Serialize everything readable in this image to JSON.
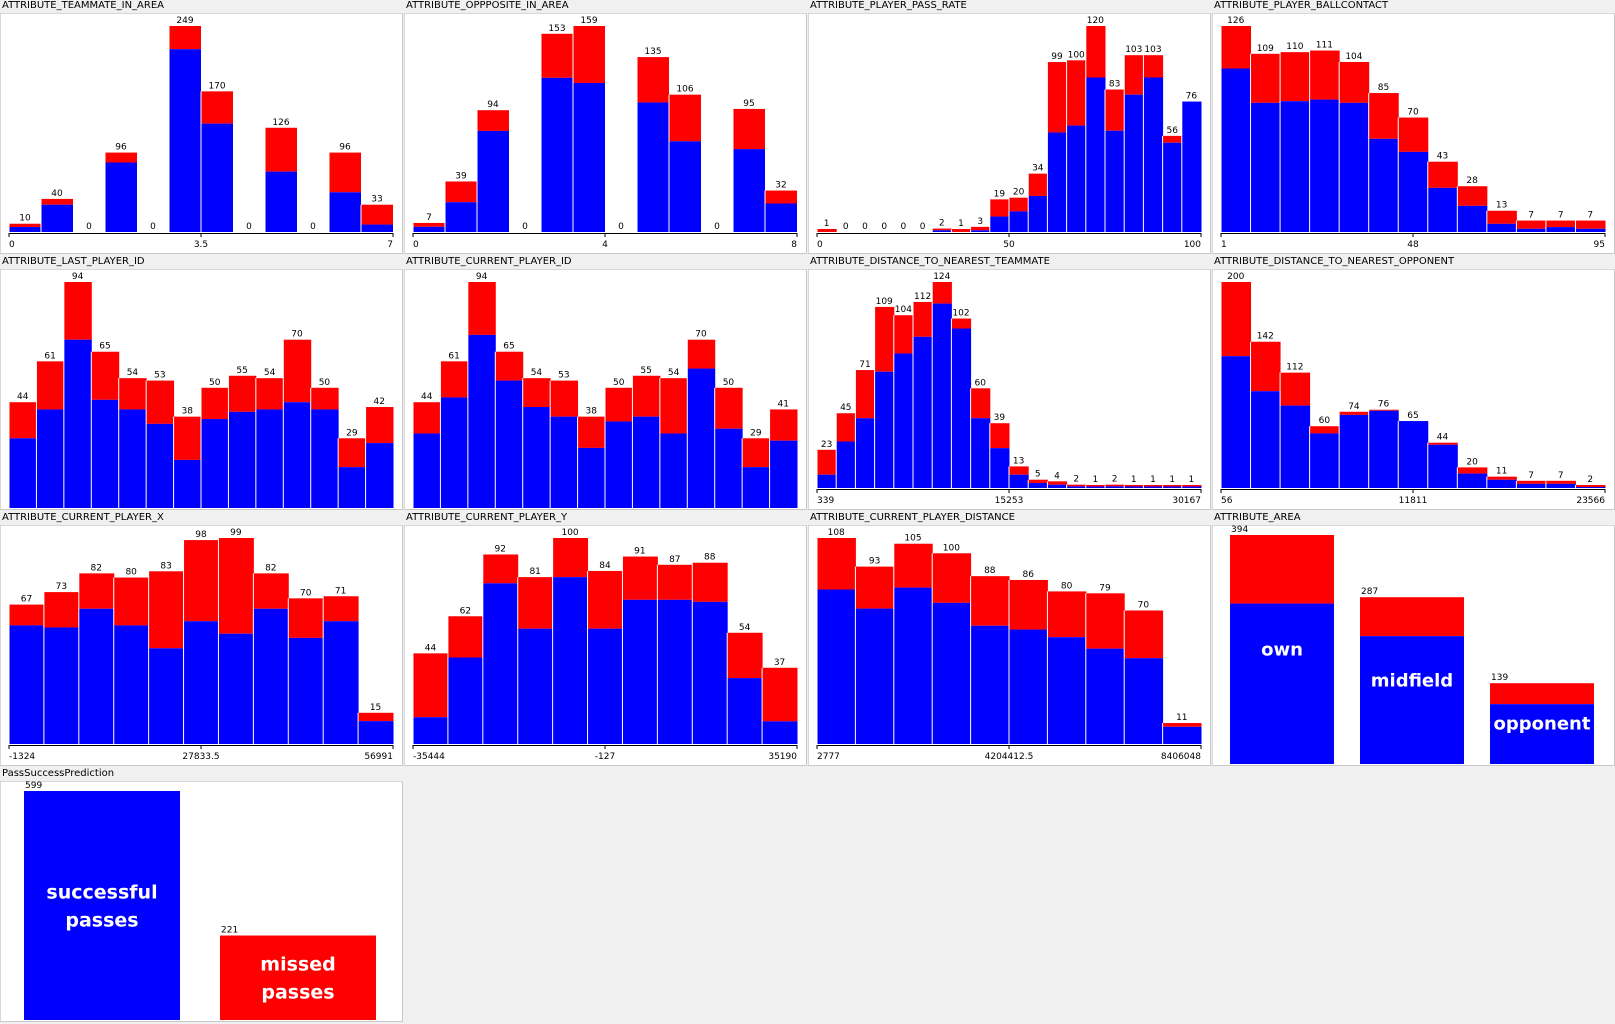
{
  "colors": {
    "success": "#0000ff",
    "missed": "#ff0000",
    "axis": "#000000",
    "panel": "#ffffff",
    "window": "#f0f0f0"
  },
  "chart_data": [
    {
      "type": "bar",
      "title": "ATTRIBUTE_TEAMMATE_IN_AREA",
      "bin_gaps": true,
      "totals": [
        10,
        40,
        0,
        96,
        0,
        249,
        170,
        0,
        126,
        0,
        96,
        33
      ],
      "success": [
        6,
        33,
        0,
        84,
        0,
        221,
        131,
        0,
        73,
        0,
        48,
        9
      ],
      "ticks": [
        "0",
        "3.5",
        "7"
      ]
    },
    {
      "type": "bar",
      "title": "ATTRIBUTE_OPPPOSITE_IN_AREA",
      "bin_gaps": true,
      "totals": [
        7,
        39,
        94,
        0,
        153,
        159,
        0,
        135,
        106,
        0,
        95,
        32
      ],
      "success": [
        4,
        23,
        78,
        0,
        119,
        115,
        0,
        100,
        70,
        0,
        64,
        22
      ],
      "ticks": [
        "0",
        "4",
        "8"
      ]
    },
    {
      "type": "bar",
      "title": "ATTRIBUTE_PLAYER_PASS_RATE",
      "totals": [
        1,
        0,
        0,
        0,
        0,
        0,
        2,
        1,
        3,
        19,
        20,
        34,
        99,
        100,
        120,
        83,
        103,
        103,
        56,
        76
      ],
      "success": [
        0,
        0,
        0,
        0,
        0,
        0,
        1,
        0,
        1,
        9,
        12,
        21,
        58,
        62,
        90,
        59,
        80,
        90,
        52,
        76
      ],
      "ticks": [
        "0",
        "50",
        "100"
      ]
    },
    {
      "type": "bar",
      "title": "ATTRIBUTE_PLAYER_BALLCONTACT",
      "totals": [
        126,
        109,
        110,
        111,
        104,
        85,
        70,
        43,
        28,
        13,
        7,
        7,
        7
      ],
      "success": [
        100,
        79,
        80,
        81,
        79,
        57,
        49,
        27,
        16,
        5,
        2,
        3,
        2
      ],
      "ticks": [
        "1",
        "48",
        "95"
      ]
    },
    {
      "type": "bar",
      "title": "ATTRIBUTE_LAST_PLAYER_ID",
      "totals": [
        44,
        61,
        94,
        65,
        54,
        53,
        38,
        50,
        55,
        54,
        70,
        50,
        29,
        42
      ],
      "success": [
        29,
        41,
        70,
        45,
        41,
        35,
        20,
        37,
        40,
        41,
        44,
        41,
        17,
        27
      ],
      "ticks": []
    },
    {
      "type": "bar",
      "title": "ATTRIBUTE_CURRENT_PLAYER_ID",
      "totals": [
        44,
        61,
        94,
        65,
        54,
        53,
        38,
        50,
        55,
        54,
        70,
        50,
        29,
        41
      ],
      "success": [
        31,
        46,
        72,
        53,
        42,
        38,
        25,
        36,
        38,
        31,
        58,
        33,
        17,
        28
      ],
      "ticks": []
    },
    {
      "type": "bar",
      "title": "ATTRIBUTE_DISTANCE_TO_NEAREST_TEAMMATE",
      "totals": [
        23,
        45,
        71,
        109,
        104,
        112,
        124,
        102,
        60,
        39,
        13,
        5,
        4,
        2,
        1,
        2,
        1,
        1,
        1,
        1
      ],
      "success": [
        8,
        28,
        42,
        70,
        81,
        91,
        111,
        96,
        42,
        24,
        8,
        3,
        2,
        1,
        1,
        1,
        1,
        1,
        1,
        1
      ],
      "ticks": [
        "339",
        "15253",
        "30167"
      ]
    },
    {
      "type": "bar",
      "title": "ATTRIBUTE_DISTANCE_TO_NEAREST_OPPONENT",
      "totals": [
        200,
        142,
        112,
        60,
        74,
        76,
        65,
        44,
        20,
        11,
        7,
        7,
        2
      ],
      "success": [
        128,
        94,
        80,
        53,
        71,
        75,
        65,
        42,
        14,
        8,
        4,
        4,
        1
      ],
      "ticks": [
        "56",
        "11811",
        "23566"
      ]
    },
    {
      "type": "bar",
      "title": "ATTRIBUTE_CURRENT_PLAYER_X",
      "totals": [
        67,
        73,
        82,
        80,
        83,
        98,
        99,
        82,
        70,
        71,
        15
      ],
      "success": [
        57,
        56,
        65,
        57,
        46,
        59,
        53,
        65,
        51,
        59,
        11
      ],
      "ticks": [
        "-1324",
        "27833.5",
        "56991"
      ]
    },
    {
      "type": "bar",
      "title": "ATTRIBUTE_CURRENT_PLAYER_Y",
      "totals": [
        44,
        62,
        92,
        81,
        100,
        84,
        91,
        87,
        88,
        54,
        37
      ],
      "success": [
        13,
        42,
        78,
        56,
        81,
        56,
        70,
        70,
        69,
        32,
        11
      ],
      "ticks": [
        "-35444",
        "-127",
        "35190"
      ]
    },
    {
      "type": "bar",
      "title": "ATTRIBUTE_CURRENT_PLAYER_DISTANCE",
      "totals": [
        108,
        93,
        105,
        100,
        88,
        86,
        80,
        79,
        70,
        11
      ],
      "success": [
        81,
        71,
        82,
        74,
        62,
        60,
        56,
        50,
        45,
        9
      ],
      "ticks": [
        "2777",
        "4204412.5",
        "8406048"
      ]
    },
    {
      "type": "bar",
      "title": "ATTRIBUTE_AREA",
      "nominal": true,
      "categories": [
        "own",
        "midfield",
        "opponent"
      ],
      "totals": [
        394,
        287,
        139
      ],
      "success": [
        276,
        220,
        103
      ]
    },
    {
      "type": "bar",
      "title": "PassSuccessPrediction",
      "nominal": true,
      "class_chart": true,
      "categories": [
        "successful passes",
        "missed passes"
      ],
      "totals": [
        599,
        221
      ],
      "success": [
        599,
        0
      ]
    }
  ]
}
